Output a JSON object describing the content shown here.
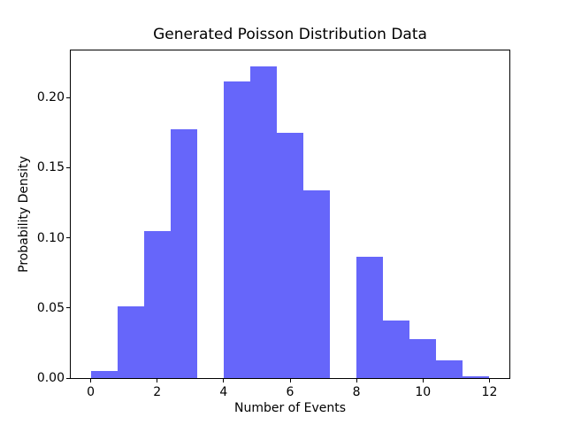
{
  "chart_data": {
    "type": "bar",
    "subtype": "histogram",
    "title": "Generated Poisson Distribution Data",
    "xlabel": "Number of Events",
    "ylabel": "Probability Density",
    "bin_edges": [
      0,
      0.8,
      1.6,
      2.4,
      3.2,
      4.0,
      4.8,
      5.6,
      6.4,
      7.2,
      8.0,
      8.8,
      9.6,
      10.4,
      11.2,
      12.0
    ],
    "densities": [
      0.005,
      0.05125,
      0.105,
      0.1775,
      0,
      0.21125,
      0.2225,
      0.175,
      0.13375,
      0,
      0.08625,
      0.04125,
      0.0275,
      0.0125,
      0.00125
    ],
    "xlim": [
      -0.6,
      12.6
    ],
    "ylim": [
      0,
      0.233625
    ],
    "xticks": {
      "values": [
        0,
        2,
        4,
        6,
        8,
        10,
        12
      ],
      "labels": [
        "0",
        "2",
        "4",
        "6",
        "8",
        "10",
        "12"
      ]
    },
    "yticks": {
      "values": [
        0,
        0.05,
        0.1,
        0.15,
        0.2
      ],
      "labels": [
        "0.00",
        "0.05",
        "0.10",
        "0.15",
        "0.20"
      ]
    },
    "grid": false,
    "legend": null,
    "colors": {
      "bar_fill": "#6666fa",
      "spine": "#000000",
      "text": "#000000",
      "background": "#ffffff"
    }
  }
}
